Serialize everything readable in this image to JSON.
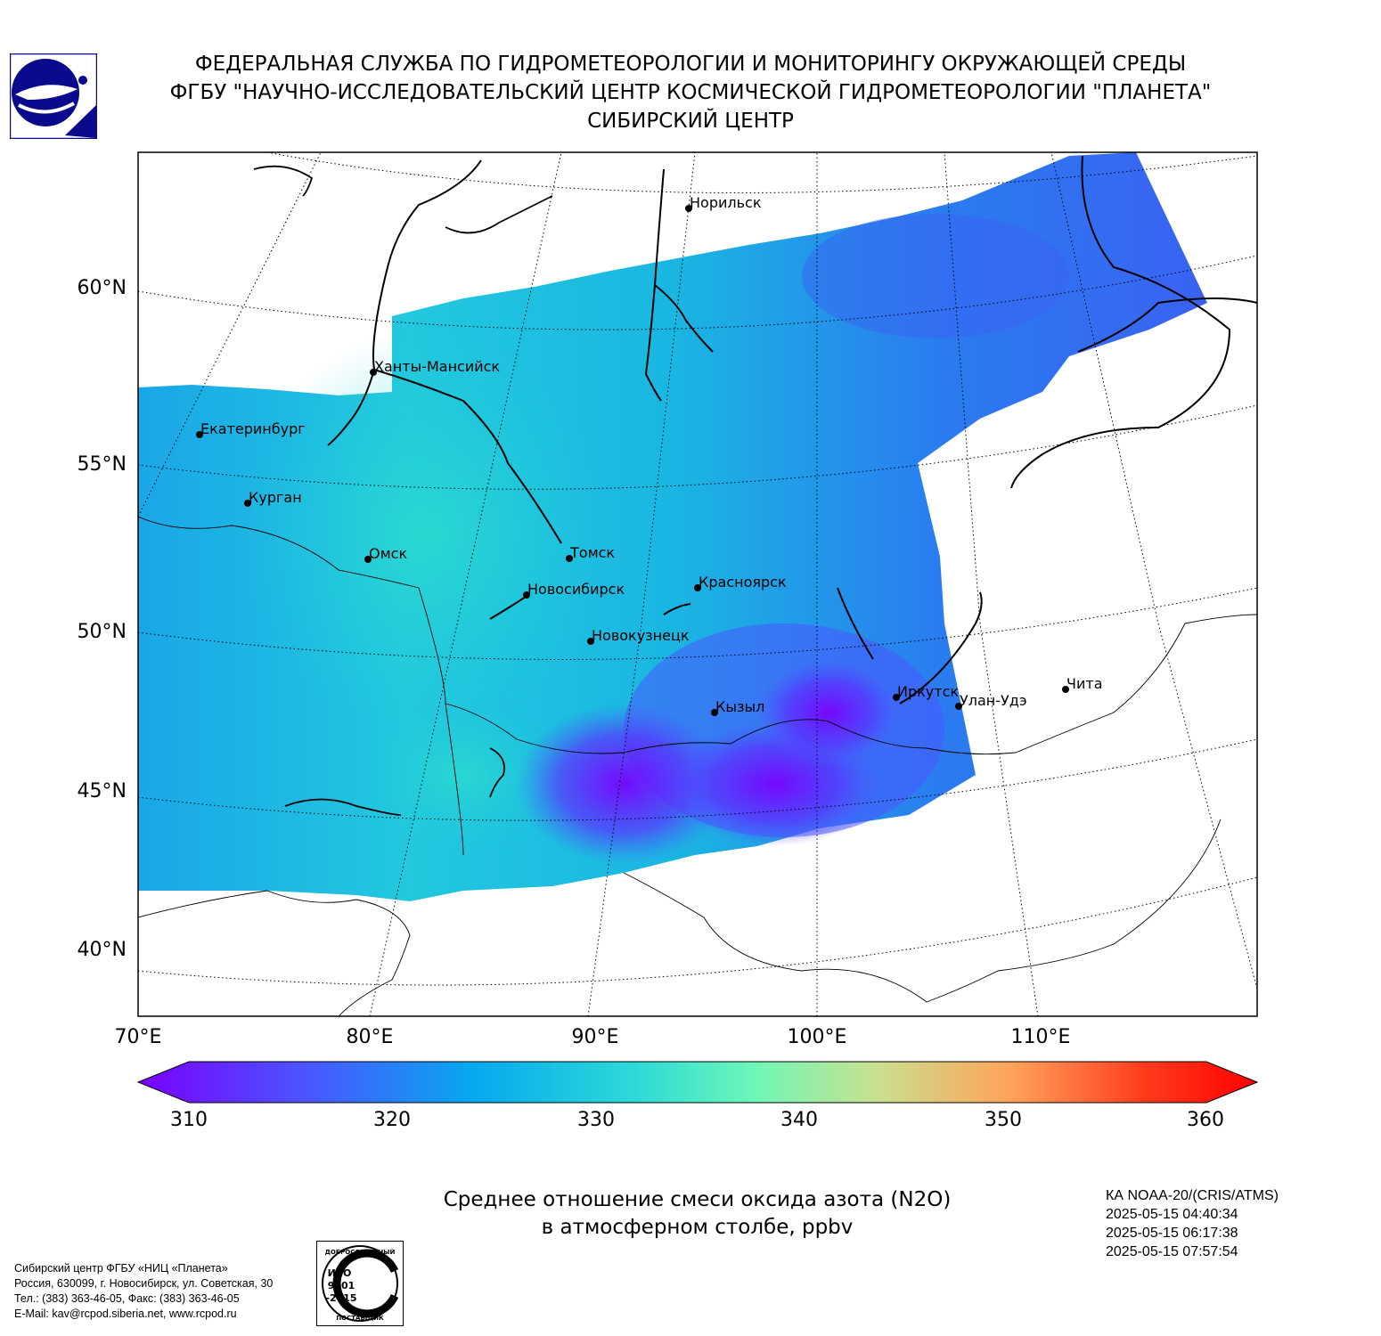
{
  "header": {
    "line1": "ФЕДЕРАЛЬНАЯ СЛУЖБА ПО ГИДРОМЕТЕОРОЛОГИИ И МОНИТОРИНГУ ОКРУЖАЮЩЕЙ СРЕДЫ",
    "line2": "ФГБУ \"НАУЧНО-ИССЛЕДОВАТЕЛЬСКИЙ ЦЕНТР КОСМИЧЕСКОЙ ГИДРОМЕТЕОРОЛОГИИ \"ПЛАНЕТА\"",
    "line3": "СИБИРСКИЙ ЦЕНТР"
  },
  "map": {
    "lat_labels": [
      "60°N",
      "55°N",
      "50°N",
      "45°N",
      "40°N"
    ],
    "lon_labels": [
      "70°E",
      "80°E",
      "90°E",
      "100°E",
      "110°E"
    ],
    "cities": [
      {
        "name": "Норильск"
      },
      {
        "name": "Ханты-Мансийск"
      },
      {
        "name": "Екатеринбург"
      },
      {
        "name": "Курган"
      },
      {
        "name": "Омск"
      },
      {
        "name": "Томск"
      },
      {
        "name": "Новосибирск"
      },
      {
        "name": "Красноярск"
      },
      {
        "name": "Новокузнецк"
      },
      {
        "name": "Кызыл"
      },
      {
        "name": "Иркутск"
      },
      {
        "name": "Улан-Удэ"
      },
      {
        "name": "Чита"
      }
    ]
  },
  "colorbar": {
    "ticks": [
      "310",
      "320",
      "330",
      "340",
      "350",
      "360"
    ],
    "min": 310,
    "max": 360,
    "colors": [
      "#7a00ff",
      "#4b55ff",
      "#06a9ef",
      "#2fdcd6",
      "#6ef7b8",
      "#c9e08f",
      "#ffa35a",
      "#ff3b1d",
      "#ff0000"
    ]
  },
  "title": {
    "line1": "Среднее отношение смеси оксида азота (N2O)",
    "line2": "в атмосферном столбе, ppbv"
  },
  "satellite": {
    "name": "КА NOAA-20/(CRIS/ATMS)",
    "times": [
      "2025-05-15 04:40:34",
      "2025-05-15 06:17:38",
      "2025-05-15 07:57:54"
    ]
  },
  "contacts": {
    "line1": "Сибирский центр ФГБУ «НИЦ «Планета»",
    "line2": "Россия, 630099, г. Новосибирск, ул. Советская, 30",
    "line3": "Тел.: (383) 363-46-05, Факс: (383) 363-46-05",
    "line4": "E-Mail: kav@rcpod.siberia.net, www.rcpod.ru"
  },
  "iso_badge": {
    "top_text": "ДОБРОСОВЕСТНЫЙ",
    "line1": "ИСО",
    "line2": "9001",
    "line3": "-2015",
    "bottom_text": "ПОСТАВЩИК"
  }
}
